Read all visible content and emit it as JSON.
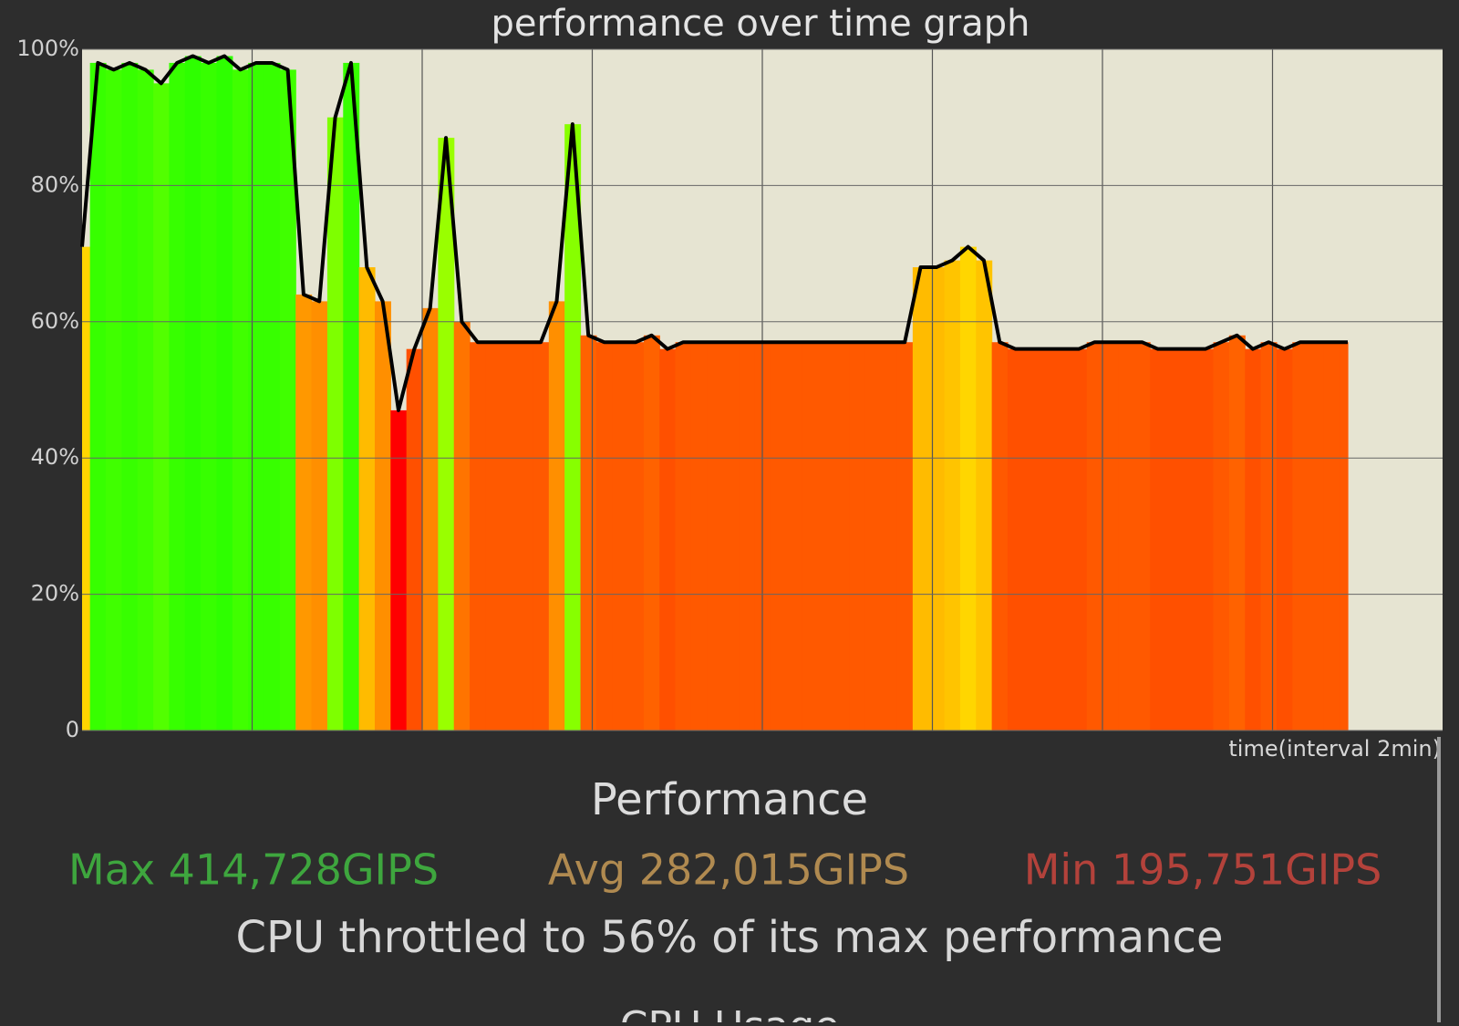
{
  "chart_data": {
    "type": "area",
    "title": "performance over time graph",
    "x_label": "time(interval 2min)",
    "values": [
      71,
      98,
      97,
      98,
      97,
      95,
      98,
      99,
      98,
      99,
      97,
      98,
      98,
      97,
      64,
      63,
      90,
      98,
      68,
      63,
      47,
      56,
      62,
      87,
      60,
      57,
      57,
      57,
      57,
      57,
      63,
      89,
      58,
      57,
      57,
      57,
      58,
      56,
      57,
      57,
      57,
      57,
      57,
      57,
      57,
      57,
      57,
      57,
      57,
      57,
      57,
      57,
      57,
      68,
      68,
      69,
      71,
      69,
      57,
      56,
      56,
      56,
      56,
      56,
      57,
      57,
      57,
      57,
      56,
      56,
      56,
      56,
      57,
      58,
      56,
      57,
      56,
      57,
      57,
      57,
      57
    ],
    "line_color": "#000000",
    "ylim": [
      0,
      100
    ],
    "yticks": [
      0,
      {
        "value": 20,
        "label": "20%"
      },
      {
        "value": 40,
        "label": "40%"
      },
      {
        "value": 60,
        "label": "60%"
      },
      {
        "value": 80,
        "label": "80%"
      },
      {
        "value": 100,
        "label": "100%"
      }
    ],
    "grid": true
  },
  "summary": {
    "title": "Performance",
    "max": "Max 414,728GIPS",
    "avg": "Avg 282,015GIPS",
    "min": "Min 195,751GIPS",
    "throttle": "CPU throttled to 56% of its max performance",
    "next_section": "CPU Usage"
  }
}
